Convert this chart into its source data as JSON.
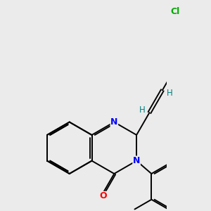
{
  "bg_color": "#ebebeb",
  "bond_color": "#000000",
  "N_color": "#0000ff",
  "O_color": "#ff0000",
  "Cl_color": "#00aa00",
  "H_color": "#008080",
  "lw": 1.4,
  "dbo": 0.06,
  "figsize": [
    3.0,
    3.0
  ],
  "dpi": 100,
  "xlim": [
    -1.8,
    2.6
  ],
  "ylim": [
    -2.2,
    2.8
  ]
}
